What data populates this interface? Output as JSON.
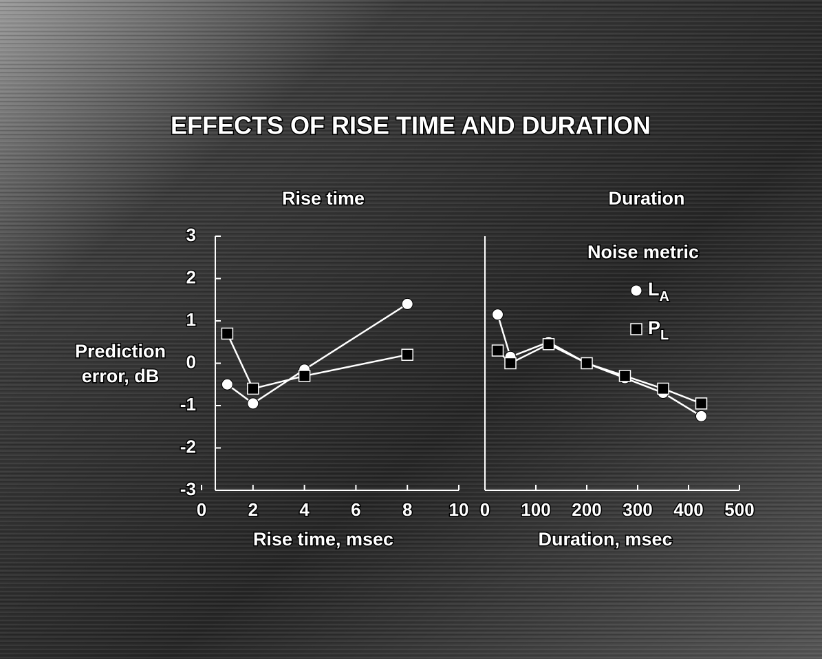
{
  "title": "EFFECTS OF RISE TIME AND DURATION",
  "chart_data": [
    {
      "type": "line",
      "title": "Rise time",
      "xlabel": "Rise time, msec",
      "ylabel": [
        "Prediction",
        "error, dB"
      ],
      "x": [
        1,
        2,
        4,
        8
      ],
      "xlim": [
        0,
        10
      ],
      "xticks": [
        0,
        2,
        4,
        6,
        8,
        10
      ],
      "ylim": [
        -3,
        3
      ],
      "yticks": [
        3,
        2,
        1,
        0,
        -1,
        -2,
        -3
      ],
      "series": [
        {
          "color": "#ffffff",
          "marker": "circle",
          "values": [
            -0.5,
            -0.95,
            -0.15,
            1.4
          ]
        },
        {
          "color": "#ffffff",
          "marker": "square",
          "values": [
            0.7,
            -0.6,
            -0.3,
            0.2
          ]
        }
      ]
    },
    {
      "type": "line",
      "title": "Duration",
      "xlabel": "Duration, msec",
      "x": [
        25,
        50,
        125,
        200,
        275,
        350,
        425
      ],
      "xlim": [
        0,
        500
      ],
      "xticks": [
        0,
        100,
        200,
        300,
        400,
        500
      ],
      "ylim": [
        -3,
        3
      ],
      "legend": "upper right",
      "legend_title": "Noise metric",
      "series": [
        {
          "name": "LA",
          "color": "#ffffff",
          "marker": "circle",
          "values": [
            1.15,
            0.15,
            0.5,
            0.0,
            -0.35,
            -0.7,
            -1.25
          ]
        },
        {
          "name": "PL",
          "color": "#ffffff",
          "marker": "square",
          "values": [
            0.3,
            0.0,
            0.45,
            0.0,
            -0.3,
            -0.6,
            -0.95
          ]
        }
      ]
    }
  ]
}
